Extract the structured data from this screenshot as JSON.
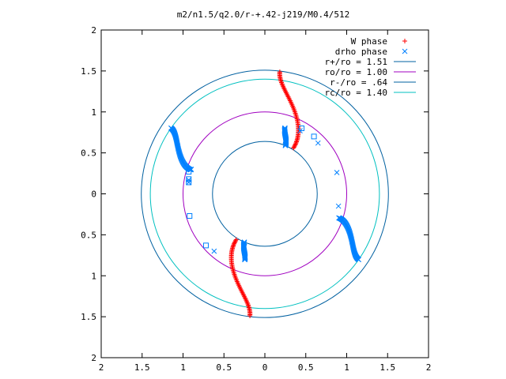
{
  "chart_data": {
    "type": "scatter",
    "title": "m2/n1.5/q2.0/r-+.42-j219/M0.4/512",
    "xlim": [
      -2,
      2
    ],
    "ylim": [
      -2,
      2
    ],
    "x_tick_labels": [
      "2",
      "1.5",
      "1",
      "0.5",
      "0",
      "0.5",
      "1",
      "1.5",
      "2"
    ],
    "y_tick_labels": [
      "2",
      "1.5",
      "1",
      "0.5",
      "0",
      "0.5",
      "1",
      "1.5",
      "2"
    ],
    "grid": false,
    "legend_position": "top-right",
    "legend": [
      {
        "label": "W phase",
        "kind": "plus",
        "color": "#ff0000"
      },
      {
        "label": "drho phase",
        "kind": "cross",
        "color": "#0080ff"
      },
      {
        "label": "r+/ro = 1.51",
        "kind": "line",
        "color": "#0060a0"
      },
      {
        "label": "ro/ro = 1.00",
        "kind": "line",
        "color": "#a000c0"
      },
      {
        "label": "r-/ro = .64",
        "kind": "line",
        "color": "#0060a0"
      },
      {
        "label": "rc/ro = 1.40",
        "kind": "line",
        "color": "#00c0c0"
      }
    ],
    "circles": [
      {
        "radius": 1.51,
        "color": "#0060a0"
      },
      {
        "radius": 1.0,
        "color": "#a000c0"
      },
      {
        "radius": 0.64,
        "color": "#0060a0"
      },
      {
        "radius": 1.4,
        "color": "#00c0c0"
      }
    ],
    "series": [
      {
        "name": "W phase",
        "marker": "plus",
        "color": "#ff0000",
        "arcs": [
          {
            "r": [
              0.66,
              1.5
            ],
            "theta_deg": [
              58,
              83
            ]
          },
          {
            "r": [
              0.66,
              1.5
            ],
            "theta_deg": [
              238,
              263
            ]
          }
        ]
      },
      {
        "name": "drho phase",
        "marker": "cross",
        "color": "#0080ff",
        "arcs": [
          {
            "r": [
              0.64,
              0.84
            ],
            "theta_deg": [
              67,
              73
            ]
          },
          {
            "r": [
              0.64,
              0.84
            ],
            "theta_deg": [
              247,
              253
            ]
          },
          {
            "r": [
              0.95,
              1.4
            ],
            "theta_deg": [
              162,
              145
            ]
          },
          {
            "r": [
              0.95,
              1.4
            ],
            "theta_deg": [
              342,
              325
            ]
          }
        ],
        "scatter": [
          [
            0.43,
            0.77
          ],
          [
            0.65,
            0.62
          ],
          [
            0.88,
            0.26
          ],
          [
            0.9,
            -0.15
          ],
          [
            -0.9,
            0.3
          ],
          [
            -0.93,
            0.17
          ],
          [
            -0.93,
            0.14
          ],
          [
            -0.62,
            -0.7
          ]
        ],
        "squares": [
          [
            -0.93,
            0.27
          ],
          [
            -0.93,
            0.18
          ],
          [
            -0.93,
            0.14
          ],
          [
            -0.92,
            -0.27
          ],
          [
            -0.72,
            -0.63
          ],
          [
            0.45,
            0.8
          ],
          [
            0.6,
            0.7
          ]
        ]
      }
    ]
  }
}
